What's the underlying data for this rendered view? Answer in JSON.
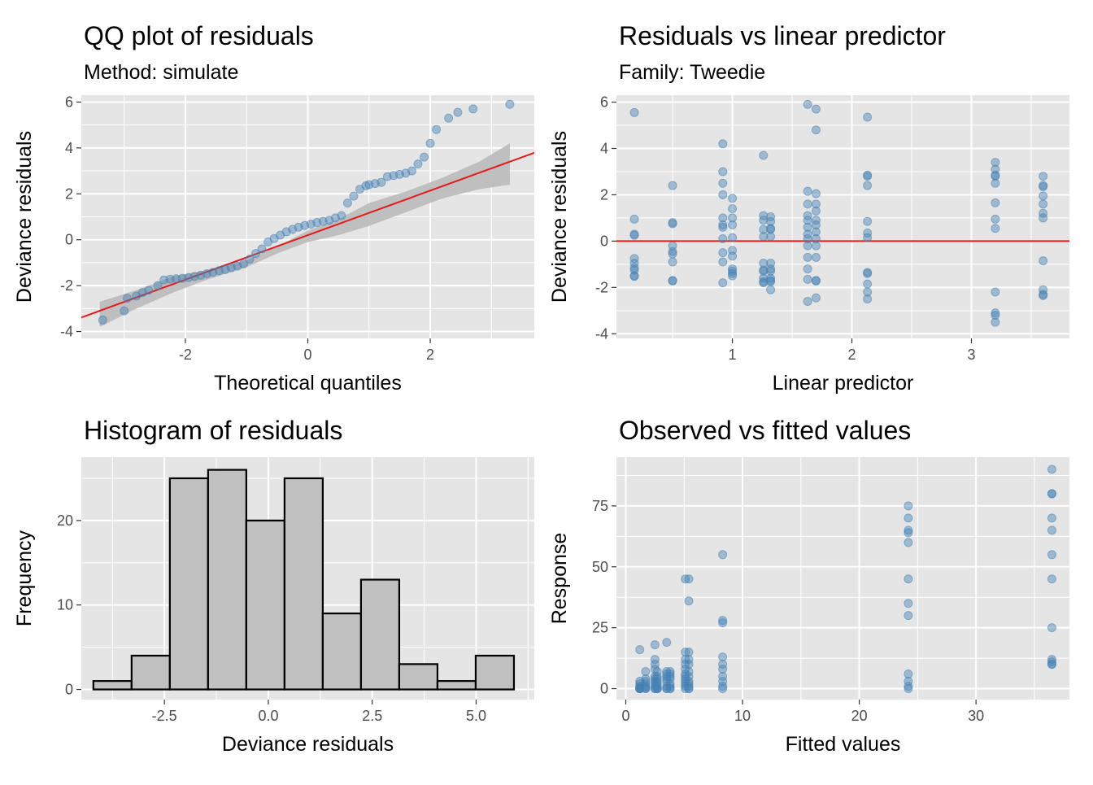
{
  "colors": {
    "panel_bg": "#e5e5e5",
    "grid": "#ffffff",
    "point": "#4682b4",
    "ref_line": "#e41a1c",
    "band": "#bdbdbd",
    "hist_fill": "#c0c0c0",
    "hist_border": "#000000"
  },
  "chart_data": [
    {
      "id": "qq",
      "type": "scatter",
      "title": "QQ plot of residuals",
      "subtitle": "Method: simulate",
      "xlabel": "Theoretical quantiles",
      "ylabel": "Deviance residuals",
      "xlim": [
        -3.7,
        3.7
      ],
      "ylim": [
        -4.3,
        6.3
      ],
      "xticks": [
        -2,
        0,
        2
      ],
      "yticks": [
        -4,
        -2,
        0,
        2,
        4,
        6
      ],
      "reference_line": {
        "intercept": 0.2,
        "slope": 0.97
      },
      "ref_band": {
        "x": [
          -3.4,
          -2.8,
          -2.2,
          -1.6,
          -1.0,
          -0.5,
          0.0,
          0.5,
          1.0,
          1.6,
          2.2,
          2.8,
          3.3
        ],
        "lower": [
          -3.8,
          -3.0,
          -2.3,
          -1.7,
          -1.2,
          -0.6,
          -0.1,
          0.2,
          0.6,
          1.2,
          1.8,
          2.2,
          2.4
        ],
        "upper": [
          -2.7,
          -2.2,
          -1.6,
          -1.3,
          -0.9,
          -0.3,
          0.4,
          0.9,
          1.6,
          2.1,
          2.7,
          3.4,
          4.2
        ]
      },
      "points": {
        "x": [
          -3.35,
          -3.0,
          -2.95,
          -2.8,
          -2.7,
          -2.6,
          -2.45,
          -2.35,
          -2.25,
          -2.15,
          -2.05,
          -1.95,
          -1.85,
          -1.75,
          -1.65,
          -1.55,
          -1.45,
          -1.35,
          -1.25,
          -1.15,
          -1.05,
          -0.95,
          -0.85,
          -0.75,
          -0.65,
          -0.55,
          -0.45,
          -0.35,
          -0.25,
          -0.15,
          -0.05,
          0.05,
          0.15,
          0.25,
          0.35,
          0.45,
          0.55,
          0.65,
          0.75,
          0.85,
          0.95,
          1.0,
          1.1,
          1.2,
          1.3,
          1.4,
          1.5,
          1.6,
          1.7,
          1.8,
          1.9,
          2.0,
          2.1,
          2.3,
          2.45,
          2.7,
          3.3
        ],
        "y": [
          -3.5,
          -3.1,
          -2.55,
          -2.45,
          -2.3,
          -2.2,
          -2.0,
          -1.75,
          -1.72,
          -1.7,
          -1.68,
          -1.65,
          -1.6,
          -1.55,
          -1.48,
          -1.42,
          -1.35,
          -1.3,
          -1.22,
          -1.15,
          -1.05,
          -0.85,
          -0.6,
          -0.4,
          -0.1,
          0.05,
          0.2,
          0.35,
          0.45,
          0.55,
          0.62,
          0.68,
          0.75,
          0.8,
          0.85,
          0.95,
          1.05,
          1.6,
          1.9,
          2.2,
          2.35,
          2.4,
          2.45,
          2.5,
          2.75,
          2.8,
          2.85,
          2.9,
          3.0,
          3.3,
          3.6,
          4.2,
          4.8,
          5.3,
          5.55,
          5.7,
          5.9
        ]
      }
    },
    {
      "id": "resid",
      "type": "scatter",
      "title": "Residuals vs linear predictor",
      "subtitle": "Family: Tweedie",
      "xlabel": "Linear predictor",
      "ylabel": "Deviance residuals",
      "xlim": [
        0.03,
        3.82
      ],
      "ylim": [
        -4.2,
        6.3
      ],
      "xticks": [
        1,
        2,
        3
      ],
      "yticks": [
        -4,
        -2,
        0,
        2,
        4,
        6
      ],
      "hline": 0,
      "points": {
        "x": [
          0.18,
          0.18,
          0.18,
          0.18,
          0.18,
          0.18,
          0.18,
          0.18,
          0.18,
          0.18,
          0.5,
          0.5,
          0.5,
          0.5,
          0.5,
          0.5,
          0.5,
          0.5,
          0.5,
          0.92,
          0.92,
          0.92,
          0.92,
          0.92,
          0.92,
          0.92,
          0.92,
          0.92,
          0.92,
          0.92,
          1.0,
          1.0,
          1.0,
          1.0,
          1.0,
          1.0,
          1.0,
          1.0,
          1.0,
          1.0,
          1.0,
          1.26,
          1.26,
          1.26,
          1.26,
          1.26,
          1.26,
          1.26,
          1.26,
          1.26,
          1.26,
          1.26,
          1.32,
          1.32,
          1.32,
          1.32,
          1.32,
          1.32,
          1.32,
          1.32,
          1.32,
          1.32,
          1.32,
          1.32,
          1.63,
          1.63,
          1.63,
          1.63,
          1.63,
          1.63,
          1.63,
          1.63,
          1.63,
          1.63,
          1.63,
          1.63,
          1.63,
          1.7,
          1.7,
          1.7,
          1.7,
          1.7,
          1.7,
          1.7,
          1.7,
          1.7,
          1.7,
          1.7,
          1.7,
          1.7,
          1.7,
          2.13,
          2.13,
          2.13,
          2.13,
          2.13,
          2.13,
          2.13,
          2.13,
          2.13,
          2.13,
          2.13,
          2.13,
          3.2,
          3.2,
          3.2,
          3.2,
          3.2,
          3.2,
          3.2,
          3.2,
          3.2,
          3.2,
          3.2,
          3.2,
          3.6,
          3.6,
          3.6,
          3.6,
          3.6,
          3.6,
          3.6,
          3.6,
          3.6,
          3.6,
          3.6
        ],
        "y": [
          5.55,
          0.95,
          0.3,
          0.25,
          -0.75,
          -0.95,
          -1.15,
          -1.25,
          -1.5,
          -1.52,
          2.4,
          0.8,
          0.75,
          -0.2,
          -0.45,
          -0.55,
          -0.9,
          -1.7,
          -1.72,
          4.2,
          3.0,
          2.5,
          2.0,
          1.0,
          0.7,
          0.6,
          0.1,
          -0.5,
          -0.9,
          -1.8,
          1.85,
          1.4,
          1.0,
          0.7,
          0.15,
          -0.4,
          -0.65,
          -1.2,
          -1.3,
          -1.4,
          -1.5,
          3.7,
          1.1,
          0.9,
          0.5,
          0.2,
          -0.95,
          -1.25,
          -1.3,
          -1.6,
          -1.75,
          -1.8,
          1.05,
          0.85,
          0.55,
          0.5,
          0.2,
          -0.95,
          -1.2,
          -1.3,
          -1.6,
          -1.7,
          -1.75,
          -2.1,
          5.9,
          2.15,
          1.6,
          1.1,
          0.9,
          0.6,
          0.3,
          0.1,
          -0.2,
          -0.7,
          -1.2,
          -1.65,
          -2.6,
          5.7,
          4.8,
          2.05,
          1.6,
          1.3,
          0.9,
          0.7,
          0.4,
          0.1,
          -0.2,
          -0.7,
          -1.7,
          -1.72,
          -2.45,
          5.35,
          2.85,
          2.8,
          2.4,
          0.85,
          0.35,
          0.15,
          -1.35,
          -1.4,
          -1.85,
          -2.2,
          -2.5,
          3.4,
          3.1,
          2.85,
          2.8,
          2.5,
          1.65,
          0.95,
          0.55,
          -2.2,
          -3.1,
          -3.2,
          -3.5,
          2.8,
          2.4,
          2.35,
          1.95,
          1.6,
          1.2,
          1.0,
          -0.85,
          -2.1,
          -2.3,
          -2.35
        ]
      }
    },
    {
      "id": "hist",
      "type": "bar",
      "title": "Histogram of residuals",
      "xlabel": "Deviance residuals",
      "ylabel": "Frequency",
      "xlim": [
        -4.5,
        6.4
      ],
      "ylim": [
        -1.2,
        27.5
      ],
      "xticks": [
        -2.5,
        0.0,
        2.5,
        5.0
      ],
      "xtick_labels": [
        "-2.5",
        "0.0",
        "2.5",
        "5.0"
      ],
      "yticks": [
        0,
        10,
        20
      ],
      "bin_edges": [
        -4.21,
        -3.29,
        -2.37,
        -1.45,
        -0.53,
        0.39,
        1.31,
        2.23,
        3.15,
        4.07,
        4.99,
        5.91
      ],
      "counts": [
        1,
        4,
        25,
        26,
        20,
        25,
        9,
        13,
        3,
        1,
        4
      ],
      "bin_width": 0.92,
      "bin_edges_note": "",
      "bins_x": [
        -4.21,
        -3.29,
        -2.37,
        -1.45,
        -0.53,
        0.39,
        1.31,
        2.23,
        3.15,
        4.07,
        4.99
      ]
    },
    {
      "id": "obs",
      "type": "scatter",
      "title": "Observed vs fitted values",
      "xlabel": "Fitted values",
      "ylabel": "Response",
      "xlim": [
        -0.8,
        38.0
      ],
      "ylim": [
        -4.5,
        95.0
      ],
      "xticks": [
        0,
        10,
        20,
        30
      ],
      "yticks": [
        0,
        25,
        50,
        75
      ],
      "points": {
        "x": [
          1.2,
          1.2,
          1.2,
          1.2,
          1.2,
          1.2,
          1.2,
          1.2,
          1.2,
          1.2,
          1.7,
          1.7,
          1.7,
          1.7,
          1.7,
          1.7,
          1.7,
          1.7,
          2.5,
          2.5,
          2.5,
          2.5,
          2.5,
          2.5,
          2.5,
          2.5,
          2.5,
          2.5,
          2.5,
          2.7,
          2.7,
          2.7,
          2.7,
          2.7,
          2.7,
          2.7,
          2.7,
          2.7,
          3.5,
          3.5,
          3.5,
          3.5,
          3.5,
          3.5,
          3.5,
          3.5,
          3.5,
          3.8,
          3.8,
          3.8,
          3.8,
          3.8,
          3.8,
          3.8,
          3.8,
          5.1,
          5.1,
          5.1,
          5.1,
          5.1,
          5.1,
          5.1,
          5.1,
          5.1,
          5.1,
          5.1,
          5.1,
          5.4,
          5.4,
          5.4,
          5.4,
          5.4,
          5.4,
          5.4,
          5.4,
          5.4,
          5.4,
          5.4,
          5.4,
          8.3,
          8.3,
          8.3,
          8.3,
          8.3,
          8.3,
          8.3,
          8.3,
          8.3,
          8.3,
          24.2,
          24.2,
          24.2,
          24.2,
          24.2,
          24.2,
          24.2,
          24.2,
          24.2,
          24.2,
          24.2,
          24.2,
          36.5,
          36.5,
          36.5,
          36.5,
          36.5,
          36.5,
          36.5,
          36.5,
          36.5,
          36.5,
          36.5,
          36.5
        ],
        "y": [
          16,
          3,
          2,
          1,
          0.5,
          0,
          0,
          0,
          0,
          0,
          7,
          4,
          3,
          2,
          1,
          0.5,
          0,
          0,
          18,
          12,
          10,
          8,
          5,
          4,
          3,
          2,
          1,
          0,
          0,
          7,
          5,
          4,
          3,
          2,
          1,
          0,
          0,
          0,
          19,
          7,
          6,
          5,
          4,
          3,
          1,
          0,
          0,
          7,
          6,
          5,
          4,
          2,
          1,
          0,
          0,
          45,
          15,
          12,
          10,
          8,
          6,
          5,
          4,
          3,
          2,
          1,
          0,
          45,
          36,
          15,
          12,
          10,
          7,
          5,
          3,
          2,
          1,
          0,
          0,
          55,
          28,
          27,
          13,
          10,
          8,
          5,
          3,
          1,
          0,
          75,
          70,
          65,
          64,
          60,
          45,
          35,
          30,
          6,
          3,
          1,
          0,
          90,
          80,
          80,
          70,
          65,
          55,
          45,
          25,
          12,
          11,
          10,
          10
        ]
      }
    }
  ]
}
